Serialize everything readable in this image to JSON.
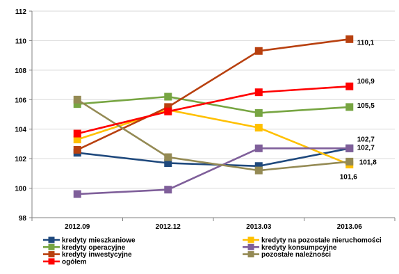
{
  "chart_data": {
    "type": "line",
    "title": "",
    "xlabel": "",
    "ylabel": "",
    "categories": [
      "2012.09",
      "2012.12",
      "2013.03",
      "2013.06"
    ],
    "ylim": [
      98,
      112
    ],
    "yticks": [
      98,
      100,
      102,
      104,
      106,
      108,
      110,
      112
    ],
    "grid": true,
    "legend_position": "bottom",
    "series": [
      {
        "name": "kredyty mieszkaniowe",
        "color": "#1F497D",
        "values": [
          102.4,
          101.7,
          101.5,
          102.7
        ],
        "last_label": "102,7"
      },
      {
        "name": "kredyty na pozostałe nieruchomości",
        "color": "#FFC000",
        "values": [
          103.3,
          105.3,
          104.1,
          101.6
        ],
        "last_label": "101,6"
      },
      {
        "name": "kredyty operacyjne",
        "color": "#77A542",
        "values": [
          105.7,
          106.2,
          105.1,
          105.5
        ],
        "last_label": "105,5"
      },
      {
        "name": "kredyty konsumpcyjne",
        "color": "#7F5F9A",
        "values": [
          99.6,
          99.9,
          102.7,
          102.7
        ],
        "last_label": "102,7"
      },
      {
        "name": "kredyty inwestycyjne",
        "color": "#B8400F",
        "values": [
          102.6,
          105.5,
          109.3,
          110.1
        ],
        "last_label": "110,1"
      },
      {
        "name": "pozostałe należności",
        "color": "#948A54",
        "values": [
          106.0,
          102.1,
          101.2,
          101.8
        ],
        "last_label": "101,8"
      },
      {
        "name": "ogółem",
        "color": "#FF0000",
        "values": [
          103.7,
          105.2,
          106.5,
          106.9
        ],
        "last_label": "106,9"
      }
    ]
  }
}
